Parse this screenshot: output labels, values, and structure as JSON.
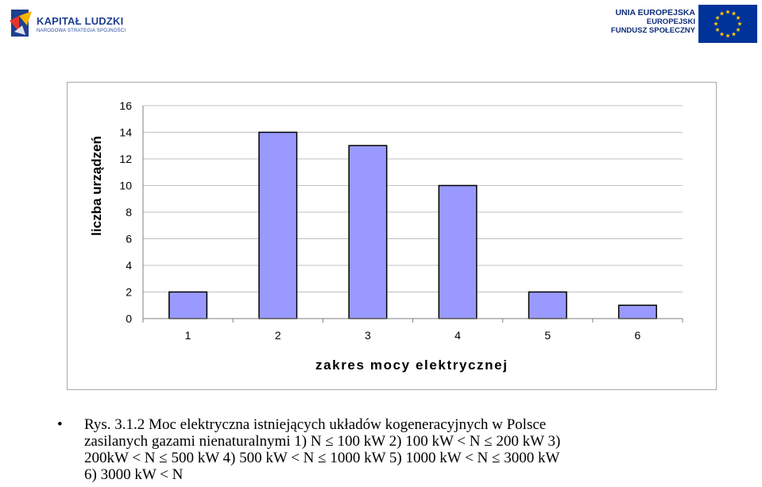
{
  "header": {
    "left_logo": {
      "name": "KAPITAŁ LUDZKI",
      "subtitle": "NARODOWA STRATEGIA SPÓJNOŚCI"
    },
    "right_logo": {
      "line1": "UNIA EUROPEJSKA",
      "line2": "EUROPEJSKI",
      "line3": "FUNDUSZ SPOŁECZNY"
    }
  },
  "colors": {
    "bar_fill": "#9999ff",
    "bar_stroke": "#000000",
    "grid": "#c0c0c0",
    "eu_blue": "#003399",
    "eu_star": "#ffcc00"
  },
  "chart_data": {
    "type": "bar",
    "categories": [
      "1",
      "2",
      "3",
      "4",
      "5",
      "6"
    ],
    "values": [
      2,
      14,
      13,
      10,
      2,
      1
    ],
    "xlabel": "zakres mocy elektrycznej",
    "ylabel": "liczba urządzeń",
    "ylim": [
      0,
      16
    ],
    "yticks": [
      "0",
      "2",
      "4",
      "6",
      "8",
      "10",
      "12",
      "14",
      "16"
    ],
    "grid": true,
    "legend": "none"
  },
  "caption": {
    "bullet": "•",
    "lines": [
      "Rys. 3.1.2 Moc elektryczna istniejących układów kogeneracyjnych w Polsce",
      "zasilanych gazami nienaturalnymi 1) N ≤ 100 kW    2) 100 kW < N ≤ 200 kW    3)",
      "200kW < N ≤ 500 kW   4) 500 kW < N ≤ 1000 kW   5) 1000 kW < N ≤ 3000 kW",
      "6)  3000 kW < N"
    ]
  }
}
